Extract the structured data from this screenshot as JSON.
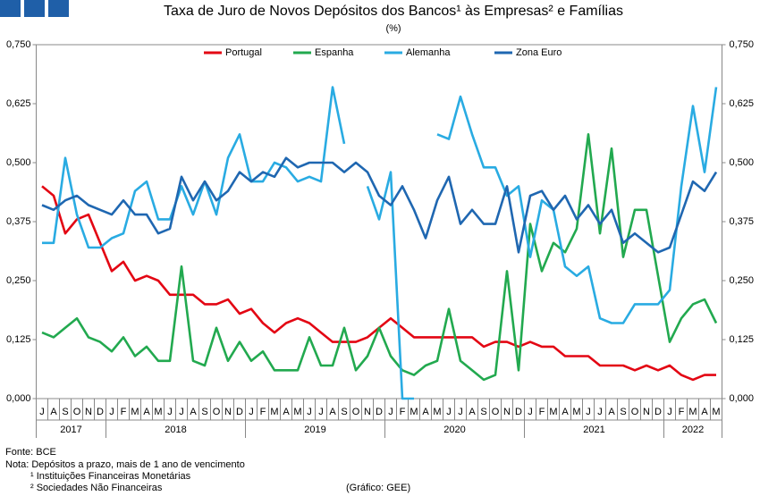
{
  "chart_data": {
    "type": "line",
    "title": "Taxa de Juro de Novos Depósitos dos Bancos¹ às Empresas² e Famílias",
    "subtitle": "(%)",
    "categories": [
      "J",
      "A",
      "S",
      "O",
      "N",
      "D",
      "J",
      "F",
      "M",
      "A",
      "M",
      "J",
      "J",
      "A",
      "S",
      "O",
      "N",
      "D",
      "J",
      "F",
      "M",
      "A",
      "M",
      "J",
      "J",
      "A",
      "S",
      "O",
      "N",
      "D",
      "J",
      "F",
      "M",
      "A",
      "M",
      "J",
      "J",
      "A",
      "S",
      "O",
      "N",
      "D",
      "J",
      "F",
      "M",
      "A",
      "M",
      "J",
      "J",
      "A",
      "S",
      "O",
      "N",
      "D",
      "J",
      "F",
      "M",
      "A",
      "M"
    ],
    "years": [
      "2017",
      "2018",
      "2019",
      "2020",
      "2021",
      "2022"
    ],
    "series": [
      {
        "name": "Portugal",
        "color": "#e30613",
        "values": [
          0.45,
          0.43,
          0.35,
          0.38,
          0.39,
          0.33,
          0.27,
          0.29,
          0.25,
          0.26,
          0.25,
          0.22,
          0.22,
          0.22,
          0.2,
          0.2,
          0.21,
          0.18,
          0.19,
          0.16,
          0.14,
          0.16,
          0.17,
          0.16,
          0.14,
          0.12,
          0.12,
          0.12,
          0.13,
          0.15,
          0.17,
          0.15,
          0.13,
          0.13,
          0.13,
          0.13,
          0.13,
          0.13,
          0.11,
          0.12,
          0.12,
          0.11,
          0.12,
          0.11,
          0.11,
          0.09,
          0.09,
          0.09,
          0.07,
          0.07,
          0.07,
          0.06,
          0.07,
          0.06,
          0.07,
          0.05,
          0.04,
          0.05,
          0.05
        ]
      },
      {
        "name": "Espanha",
        "color": "#22a94f",
        "values": [
          0.14,
          0.13,
          0.15,
          0.17,
          0.13,
          0.12,
          0.1,
          0.13,
          0.09,
          0.11,
          0.08,
          0.08,
          0.28,
          0.08,
          0.07,
          0.15,
          0.08,
          0.12,
          0.08,
          0.1,
          0.06,
          0.06,
          0.06,
          0.13,
          0.07,
          0.07,
          0.15,
          0.06,
          0.09,
          0.15,
          0.09,
          0.06,
          0.05,
          0.07,
          0.08,
          0.19,
          0.08,
          0.06,
          0.04,
          0.05,
          0.27,
          0.06,
          0.37,
          0.27,
          0.33,
          0.31,
          0.36,
          0.56,
          0.35,
          0.53,
          0.3,
          0.4,
          0.4,
          0.26,
          0.12,
          0.17,
          0.2,
          0.21,
          0.16
        ]
      },
      {
        "name": "Alemanha",
        "color": "#29abe2",
        "values": [
          0.33,
          0.33,
          0.51,
          0.39,
          0.32,
          0.32,
          0.34,
          0.35,
          0.44,
          0.46,
          0.38,
          0.38,
          0.45,
          0.39,
          0.46,
          0.39,
          0.51,
          0.56,
          0.46,
          0.46,
          0.5,
          0.49,
          0.46,
          0.47,
          0.46,
          0.66,
          0.54,
          null,
          0.45,
          0.38,
          0.48,
          0.0,
          0.0,
          null,
          0.56,
          0.55,
          0.64,
          0.56,
          0.49,
          0.49,
          0.43,
          0.45,
          0.3,
          0.42,
          0.4,
          0.28,
          0.26,
          0.28,
          0.17,
          0.16,
          0.16,
          0.2,
          0.2,
          0.2,
          0.23,
          0.45,
          0.62,
          0.48,
          0.66
        ]
      },
      {
        "name": "Zona Euro",
        "color": "#1f67b1",
        "values": [
          0.41,
          0.4,
          0.42,
          0.43,
          0.41,
          0.4,
          0.39,
          0.42,
          0.39,
          0.39,
          0.35,
          0.36,
          0.47,
          0.42,
          0.46,
          0.42,
          0.44,
          0.48,
          0.46,
          0.48,
          0.47,
          0.51,
          0.49,
          0.5,
          0.5,
          0.5,
          0.48,
          0.5,
          0.48,
          0.43,
          0.41,
          0.45,
          0.4,
          0.34,
          0.42,
          0.47,
          0.37,
          0.4,
          0.37,
          0.37,
          0.45,
          0.31,
          0.43,
          0.44,
          0.4,
          0.43,
          0.38,
          0.41,
          0.37,
          0.4,
          0.33,
          0.35,
          0.33,
          0.31,
          0.32,
          0.39,
          0.46,
          0.44,
          0.48
        ]
      }
    ],
    "ylim": [
      0,
      0.75
    ],
    "yticks": [
      {
        "value": 0,
        "label": "0,000"
      },
      {
        "value": 0.125,
        "label": "0,125"
      },
      {
        "value": 0.25,
        "label": "0,250"
      },
      {
        "value": 0.375,
        "label": "0,375"
      },
      {
        "value": 0.5,
        "label": "0,500"
      },
      {
        "value": 0.625,
        "label": "0,625"
      },
      {
        "value": 0.75,
        "label": "0,750"
      }
    ],
    "y2lim": [
      0,
      0.75
    ],
    "y2ticks": [
      {
        "value": 0,
        "label": "0,000"
      },
      {
        "value": 0.125,
        "label": "0,125"
      },
      {
        "value": 0.25,
        "label": "0,250"
      },
      {
        "value": 0.375,
        "label": "0,375"
      },
      {
        "value": 0.5,
        "label": "0,500"
      },
      {
        "value": 0.625,
        "label": "0,625"
      },
      {
        "value": 0.75,
        "label": "0,750"
      }
    ],
    "grid": false,
    "legend": "top",
    "notes": [
      "Fonte: BCE",
      "Nota: Depósitos a prazo, mais de 1 ano de vencimento",
      "¹ Instituições Financeiras Monetárias",
      "² Sociedades Não Financeiras"
    ],
    "credit": "(Gráfico: GEE)"
  }
}
